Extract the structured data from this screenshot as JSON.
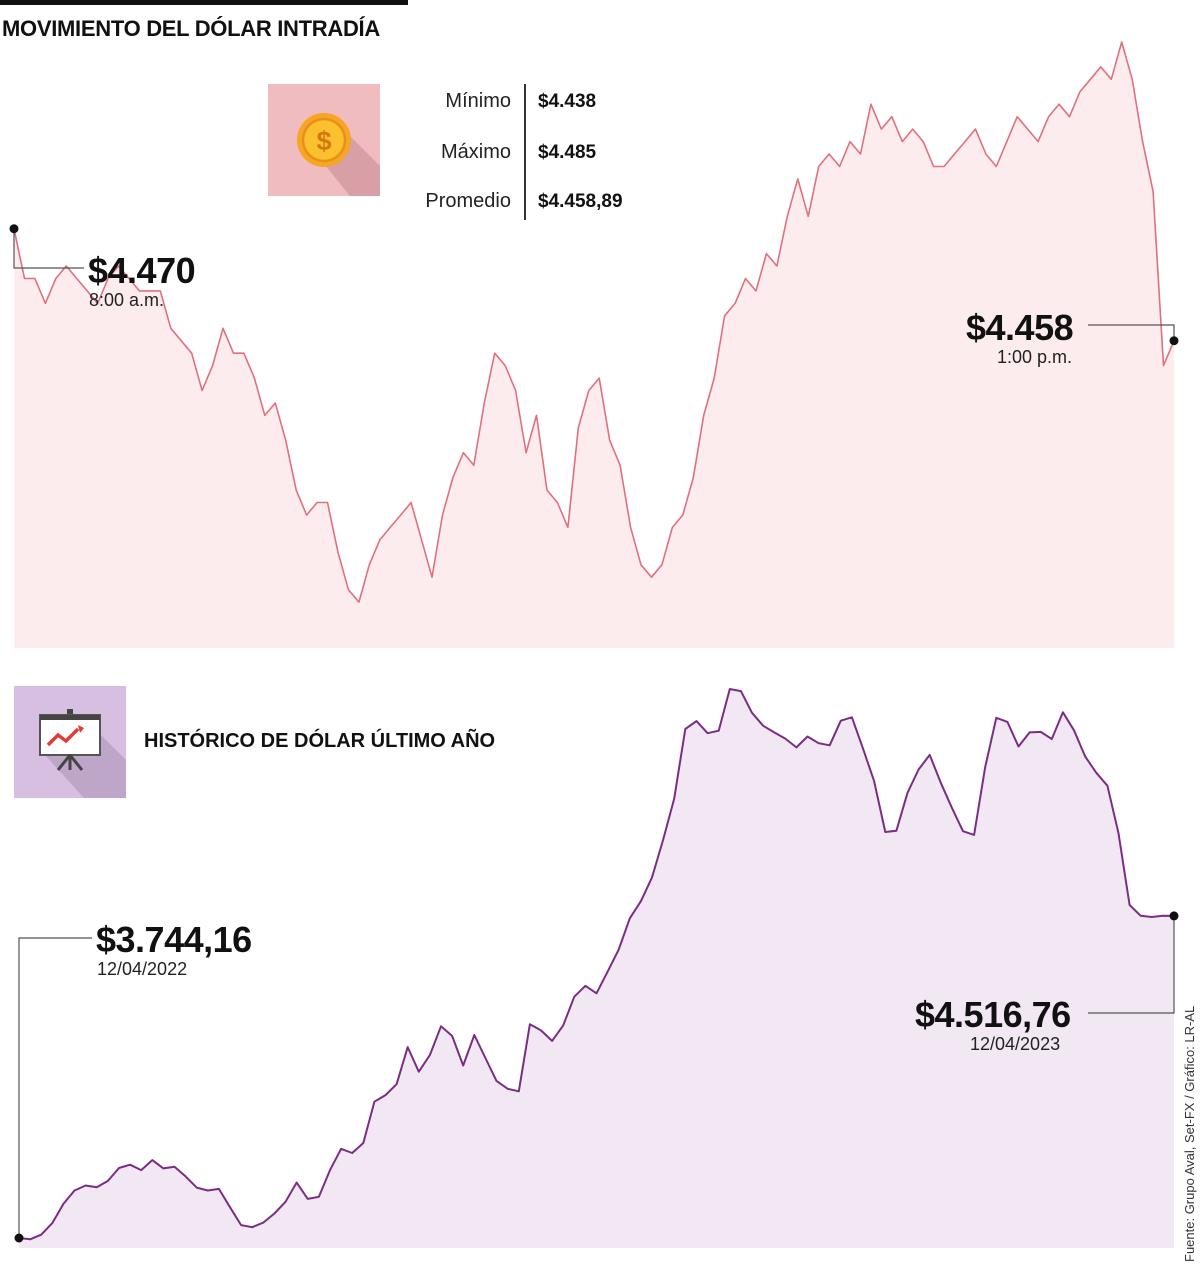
{
  "title": "MOVIMIENTO DEL DÓLAR INTRADÍA",
  "stats": {
    "min_label": "Mínimo",
    "min_value": "$4.438",
    "max_label": "Máximo",
    "max_value": "$4.485",
    "avg_label": "Promedio",
    "avg_value": "$4.458,89"
  },
  "colors": {
    "intraday_line": "#e0707f",
    "intraday_fill": "#fdeced",
    "annual_line": "#7b2d83",
    "annual_fill": "#f1e8f4"
  },
  "chart_data": [
    {
      "type": "line",
      "title": "MOVIMIENTO DEL DÓLAR INTRADÍA",
      "xlabel": "",
      "ylabel": "",
      "x_range": [
        "8:00 a.m.",
        "1:00 p.m."
      ],
      "ylim": [
        4438,
        4485
      ],
      "start": {
        "value": 4470,
        "label": "$4.470",
        "time": "8:00 a.m."
      },
      "end": {
        "value": 4458,
        "label": "$4.458",
        "time": "1:00 p.m."
      },
      "series": [
        {
          "values": [
            4470,
            4466,
            4466,
            4464,
            4466,
            4467,
            4466,
            4465,
            4464,
            4466,
            4467,
            4466,
            4465,
            4465,
            4465,
            4462,
            4461,
            4460,
            4457,
            4459,
            4462,
            4460,
            4460,
            4458,
            4455,
            4456,
            4453,
            4449,
            4447,
            4448,
            4448,
            4444,
            4441,
            4440,
            4443,
            4445,
            4446,
            4447,
            4448,
            4445,
            4442,
            4447,
            4450,
            4452,
            4451,
            4456,
            4460,
            4459,
            4457,
            4452,
            4455,
            4449,
            4448,
            4446,
            4454,
            4457,
            4458,
            4453,
            4451,
            4446,
            4443,
            4442,
            4443,
            4446,
            4447,
            4450,
            4455,
            4458,
            4463,
            4464,
            4466,
            4465,
            4468,
            4467,
            4471,
            4474,
            4471,
            4475,
            4476,
            4475,
            4477,
            4476,
            4480,
            4478,
            4479,
            4477,
            4478,
            4477,
            4475,
            4475,
            4476,
            4477,
            4478,
            4476,
            4475,
            4477,
            4479,
            4478,
            4477,
            4479,
            4480,
            4479,
            4481,
            4482,
            4483,
            4482,
            4485,
            4482,
            4477,
            4473,
            4459,
            4461
          ]
        }
      ]
    },
    {
      "type": "line",
      "title": "HISTÓRICO DE DÓLAR ÚLTIMO AÑO",
      "xlabel": "",
      "ylabel": "",
      "x_range": [
        "12/04/2022",
        "12/04/2023"
      ],
      "ylim": [
        3744.16,
        5061
      ],
      "start": {
        "value": 3744.16,
        "label": "$3.744,16",
        "date": "12/04/2022"
      },
      "end": {
        "value": 4516.76,
        "label": "$4.516,76",
        "date": "12/04/2023"
      },
      "series": [
        {
          "values": [
            3744.16,
            3741,
            3752,
            3780,
            3826,
            3858,
            3870,
            3866,
            3881,
            3912,
            3920,
            3907,
            3931,
            3911,
            3915,
            3892,
            3865,
            3858,
            3862,
            3818,
            3775,
            3770,
            3781,
            3803,
            3831,
            3877,
            3838,
            3843,
            3907,
            3958,
            3948,
            3972,
            4071,
            4087,
            4113,
            4202,
            4143,
            4183,
            4252,
            4229,
            4158,
            4231,
            4176,
            4121,
            4102,
            4096,
            4257,
            4242,
            4217,
            4254,
            4323,
            4349,
            4331,
            4383,
            4436,
            4511,
            4552,
            4609,
            4699,
            4798,
            4965,
            4984,
            4955,
            4961,
            5061,
            5056,
            5004,
            4973,
            4957,
            4942,
            4921,
            4947,
            4931,
            4926,
            4985,
            4993,
            4918,
            4840,
            4718,
            4721,
            4812,
            4868,
            4903,
            4836,
            4776,
            4720,
            4711,
            4874,
            4992,
            4982,
            4923,
            4957,
            4958,
            4941,
            5005,
            4962,
            4899,
            4860,
            4829,
            4715,
            4543,
            4517,
            4514,
            4517,
            4516.76
          ]
        }
      ]
    }
  ],
  "annual_title": "HISTÓRICO DE DÓLAR ÚLTIMO AÑO",
  "source": "Fuente: Grupo Aval, Set-FX / Gráfico: LR-AL",
  "icons": {
    "coin": "dollar-coin-icon",
    "board": "presentation-chart-icon"
  }
}
